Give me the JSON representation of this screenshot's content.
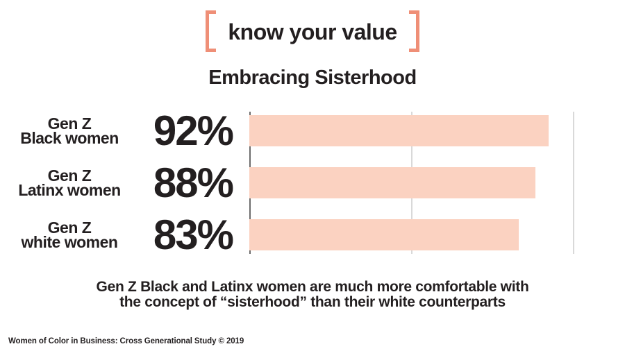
{
  "logo": {
    "text": "know your value",
    "bracket_color": "#ef8f77"
  },
  "title": "Embracing Sisterhood",
  "chart_data": {
    "type": "bar",
    "orientation": "horizontal",
    "title": "Embracing Sisterhood",
    "categories": [
      "Gen Z Black women",
      "Gen Z Latinx women",
      "Gen Z white women"
    ],
    "values": [
      92,
      88,
      83
    ],
    "value_labels": [
      "92%",
      "88%",
      "83%"
    ],
    "xlim": [
      0,
      100
    ],
    "gridlines_x": [
      50,
      100
    ],
    "grid": "vertical gridlines at 50 and 100, dark axis at 0",
    "legend": "none",
    "bar_color": "#fbd2c1"
  },
  "rows": [
    {
      "label_line1": "Gen Z",
      "label_line2": "Black women",
      "pct": "92%",
      "value": 92
    },
    {
      "label_line1": "Gen Z",
      "label_line2": "Latinx women",
      "pct": "88%",
      "value": 88
    },
    {
      "label_line1": "Gen Z",
      "label_line2": "white women",
      "pct": "83%",
      "value": 83
    }
  ],
  "caption": {
    "line1": "Gen Z Black and Latinx women are much more comfortable with",
    "line2": "the concept of “sisterhood” than their white counterparts"
  },
  "footer": "Women of Color in Business: Cross Generational Study © 2019",
  "colors": {
    "bar": "#fbd2c1",
    "accent": "#ef8f77",
    "text": "#231f20",
    "axis": "#6b6b6b",
    "gridline": "#d9d9d9",
    "background": "#ffffff"
  }
}
